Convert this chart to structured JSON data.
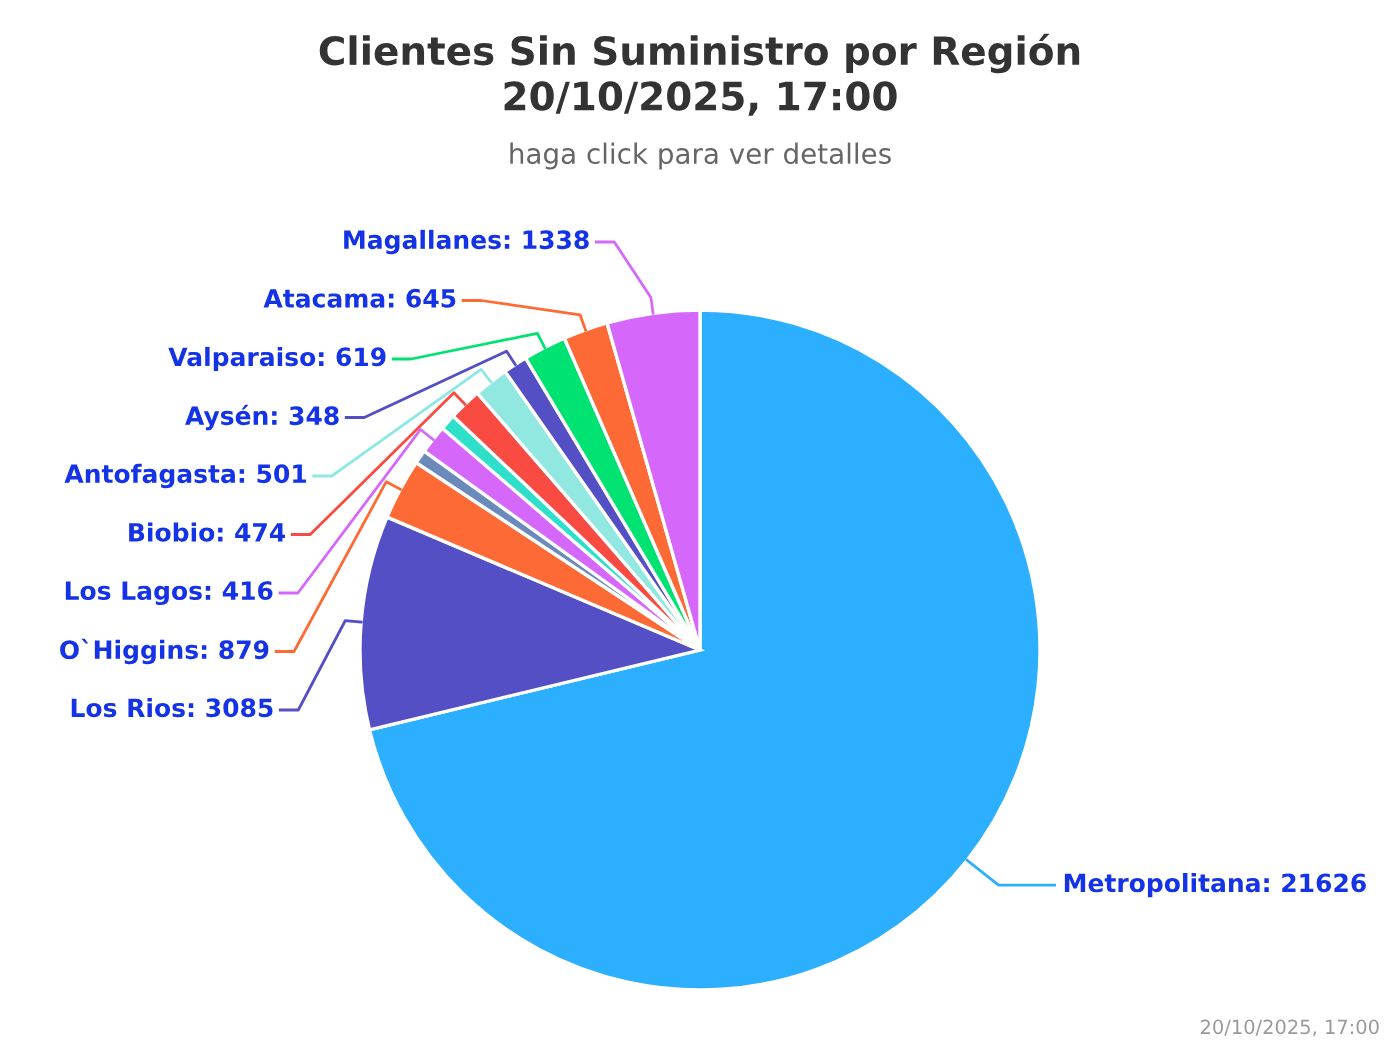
{
  "chart_data": {
    "type": "pie",
    "title": "Clientes Sin Suministro por Región\n20/10/2025, 17:00",
    "subtitle": "haga click para ver detalles",
    "annotations": [
      "20/10/2025, 17:00"
    ],
    "categories": [
      "Metropolitana",
      "Los Rios",
      "O`Higgins",
      null,
      "Los Lagos",
      null,
      "Biobio",
      "Antofagasta",
      "Aysén",
      "Valparaiso",
      "Atacama",
      "Magallanes"
    ],
    "values": [
      21626,
      3085,
      879,
      200,
      416,
      230,
      474,
      501,
      348,
      619,
      645,
      1338
    ],
    "colors": [
      "#2caffe",
      "#544fc5",
      "#fe6a35",
      "#6b8abc",
      "#d568fb",
      "#2ee0ca",
      "#fa4b42",
      "#91e8e1",
      "#544fc5",
      "#00e272",
      "#fe6a35",
      "#d568fb"
    ],
    "value_labels": [
      "21626",
      "3085",
      "879",
      null,
      "416",
      null,
      "474",
      "501",
      "348",
      "619",
      "645",
      "1338"
    ]
  }
}
